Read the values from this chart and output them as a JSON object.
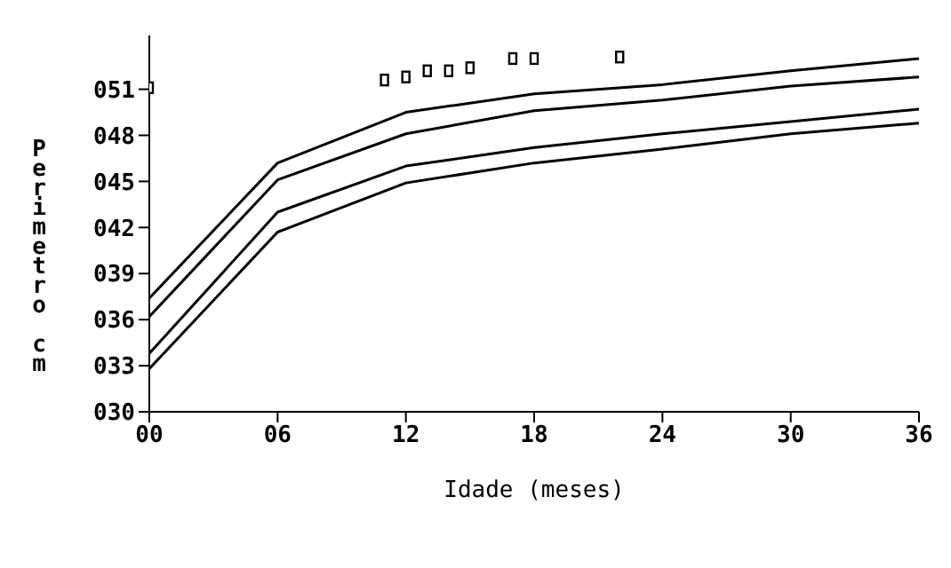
{
  "chart_data": {
    "type": "line",
    "xlabel": "Idade (meses)",
    "ylabel": "Perimetro  cm",
    "xlim": [
      0,
      36
    ],
    "xticks": [
      {
        "value": 0,
        "label": "00"
      },
      {
        "value": 6,
        "label": "06"
      },
      12,
      18,
      24,
      30,
      36
    ],
    "ylim": [
      30,
      54.5
    ],
    "yticks": [
      {
        "value": 30,
        "label": "030"
      },
      {
        "value": 33,
        "label": "033"
      },
      {
        "value": 36,
        "label": "036"
      },
      {
        "value": 39,
        "label": "039"
      },
      {
        "value": 42,
        "label": "042"
      },
      {
        "value": 45,
        "label": "045"
      },
      {
        "value": 48,
        "label": "048"
      },
      {
        "value": 51,
        "label": "051"
      }
    ],
    "grid": false,
    "line_style": "solid",
    "marker": "none",
    "series": [
      {
        "color": "#000000",
        "x": [
          0,
          6,
          12,
          18,
          24,
          30,
          36
        ],
        "values": [
          37.4,
          46.2,
          49.5,
          50.7,
          51.3,
          52.2,
          53.0
        ]
      },
      {
        "color": "#000000",
        "x": [
          0,
          6,
          12,
          18,
          24,
          30,
          36
        ],
        "values": [
          36.2,
          45.1,
          48.1,
          49.6,
          50.3,
          51.2,
          51.8
        ]
      },
      {
        "color": "#000000",
        "x": [
          0,
          6,
          12,
          18,
          24,
          30,
          36
        ],
        "values": [
          33.8,
          43.0,
          46.0,
          47.2,
          48.1,
          48.9,
          49.7
        ]
      },
      {
        "color": "#000000",
        "x": [
          0,
          6,
          12,
          18,
          24,
          30,
          36
        ],
        "values": [
          32.8,
          41.7,
          44.9,
          46.2,
          47.1,
          48.1,
          48.8
        ]
      },
      {
        "type": "scatter",
        "marker": "square",
        "color": "#000000",
        "x": [
          0,
          11,
          12,
          13,
          14,
          15,
          17,
          18,
          22
        ],
        "values": [
          51.1,
          51.6,
          51.8,
          52.2,
          52.2,
          52.4,
          53.0,
          53.0,
          53.1
        ]
      }
    ]
  }
}
